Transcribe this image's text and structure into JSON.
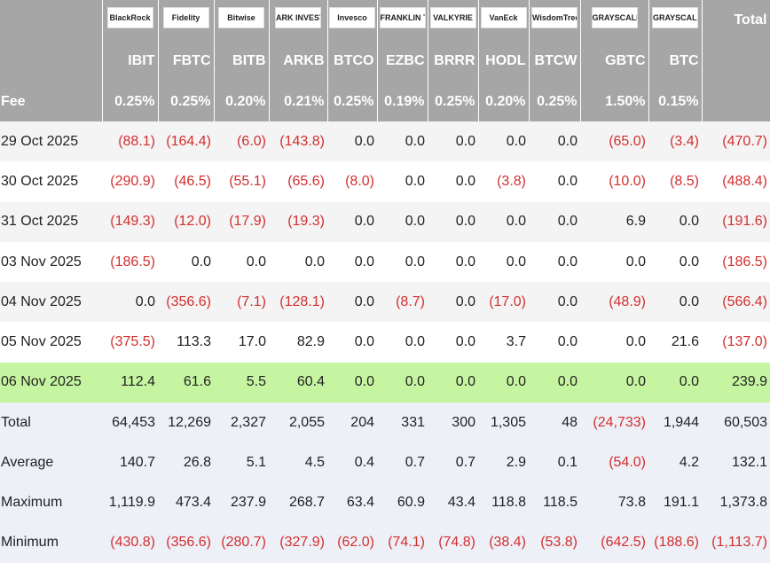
{
  "header": {
    "logos": [
      "BlackRock",
      "Fidelity",
      "Bitwise",
      "ARK INVEST",
      "Invesco",
      "FRANKLIN TEMPLETON",
      "VALKYRIE",
      "VanEck",
      "WisdomTree",
      "GRAYSCALE",
      "GRAYSCALE"
    ],
    "total_label": "Total",
    "tickers": [
      "IBIT",
      "FBTC",
      "BITB",
      "ARKB",
      "BTCO",
      "EZBC",
      "BRRR",
      "HODL",
      "BTCW",
      "GBTC",
      "BTC"
    ],
    "fee_label": "Fee",
    "fees": [
      "0.25%",
      "0.25%",
      "0.20%",
      "0.21%",
      "0.25%",
      "0.19%",
      "0.25%",
      "0.20%",
      "0.25%",
      "1.50%",
      "0.15%"
    ]
  },
  "rows": [
    {
      "date": "29 Oct 2025",
      "cells": [
        "(88.1)",
        "(164.4)",
        "(6.0)",
        "(143.8)",
        "0.0",
        "0.0",
        "0.0",
        "0.0",
        "0.0",
        "(65.0)",
        "(3.4)",
        "(470.7)"
      ]
    },
    {
      "date": "30 Oct 2025",
      "cells": [
        "(290.9)",
        "(46.5)",
        "(55.1)",
        "(65.6)",
        "(8.0)",
        "0.0",
        "0.0",
        "(3.8)",
        "0.0",
        "(10.0)",
        "(8.5)",
        "(488.4)"
      ]
    },
    {
      "date": "31 Oct 2025",
      "cells": [
        "(149.3)",
        "(12.0)",
        "(17.9)",
        "(19.3)",
        "0.0",
        "0.0",
        "0.0",
        "0.0",
        "0.0",
        "6.9",
        "0.0",
        "(191.6)"
      ]
    },
    {
      "date": "03 Nov 2025",
      "cells": [
        "(186.5)",
        "0.0",
        "0.0",
        "0.0",
        "0.0",
        "0.0",
        "0.0",
        "0.0",
        "0.0",
        "0.0",
        "0.0",
        "(186.5)"
      ]
    },
    {
      "date": "04 Nov 2025",
      "cells": [
        "0.0",
        "(356.6)",
        "(7.1)",
        "(128.1)",
        "0.0",
        "(8.7)",
        "0.0",
        "(17.0)",
        "0.0",
        "(48.9)",
        "0.0",
        "(566.4)"
      ]
    },
    {
      "date": "05 Nov 2025",
      "cells": [
        "(375.5)",
        "113.3",
        "17.0",
        "82.9",
        "0.0",
        "0.0",
        "0.0",
        "3.7",
        "0.0",
        "0.0",
        "21.6",
        "(137.0)"
      ]
    },
    {
      "date": "06 Nov 2025",
      "cells": [
        "112.4",
        "61.6",
        "5.5",
        "60.4",
        "0.0",
        "0.0",
        "0.0",
        "0.0",
        "0.0",
        "0.0",
        "0.0",
        "239.9"
      ]
    }
  ],
  "summary": [
    {
      "label": "Total",
      "cells": [
        "64,453",
        "12,269",
        "2,327",
        "2,055",
        "204",
        "331",
        "300",
        "1,305",
        "48",
        "(24,733)",
        "1,944",
        "60,503"
      ]
    },
    {
      "label": "Average",
      "cells": [
        "140.7",
        "26.8",
        "5.1",
        "4.5",
        "0.4",
        "0.7",
        "0.7",
        "2.9",
        "0.1",
        "(54.0)",
        "4.2",
        "132.1"
      ]
    },
    {
      "label": "Maximum",
      "cells": [
        "1,119.9",
        "473.4",
        "237.9",
        "268.7",
        "63.4",
        "60.9",
        "43.4",
        "118.8",
        "118.5",
        "73.8",
        "191.1",
        "1,373.8"
      ]
    },
    {
      "label": "Minimum",
      "cells": [
        "(430.8)",
        "(356.6)",
        "(280.7)",
        "(327.9)",
        "(62.0)",
        "(74.1)",
        "(74.8)",
        "(38.4)",
        "(53.8)",
        "(642.5)",
        "(188.6)",
        "(1,113.7)"
      ]
    }
  ]
}
